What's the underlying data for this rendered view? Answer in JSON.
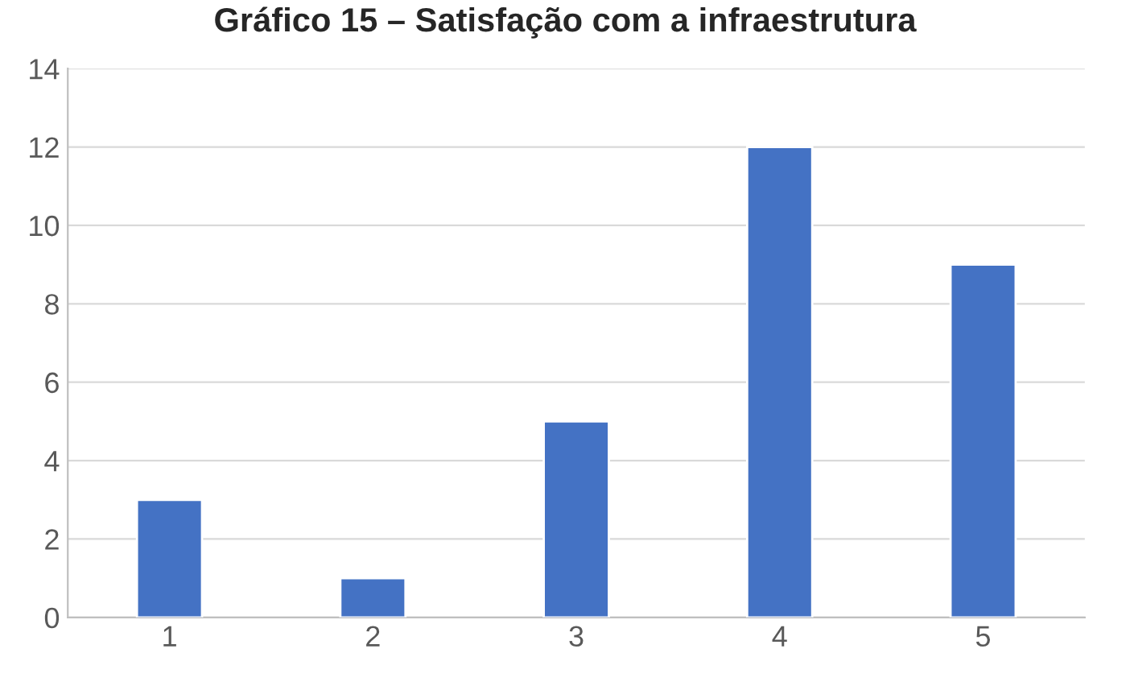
{
  "chart_data": {
    "type": "bar",
    "title": "Gráfico 15 – Satisfação com a infraestrutura",
    "categories": [
      "1",
      "2",
      "3",
      "4",
      "5"
    ],
    "values": [
      3,
      1,
      5,
      12,
      9
    ],
    "color": "#4472c4",
    "ylim": [
      0,
      14
    ],
    "yticks": [
      0,
      2,
      4,
      6,
      8,
      10,
      12,
      14
    ],
    "grid": "y"
  }
}
